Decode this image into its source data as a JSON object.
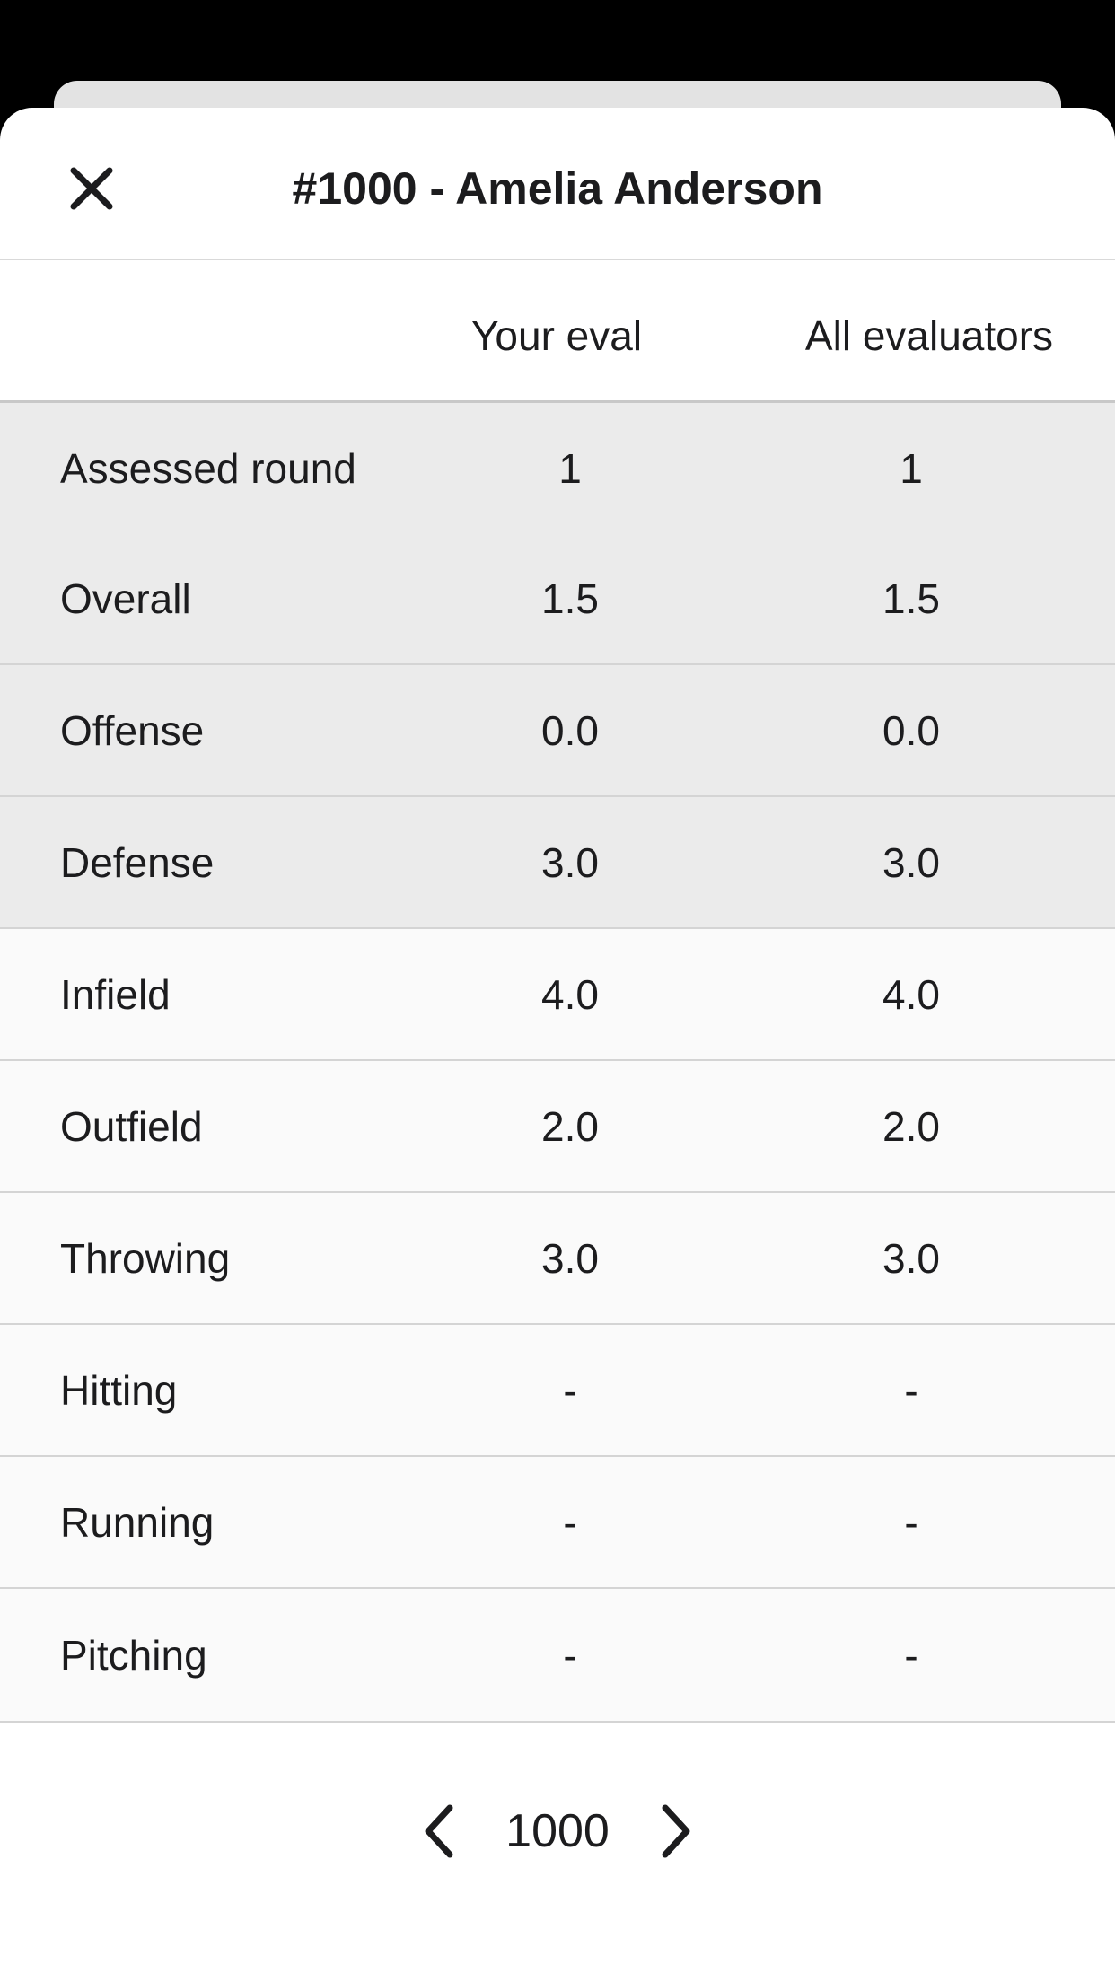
{
  "header": {
    "title": "#1000 - Amelia Anderson",
    "close_icon": "close-icon"
  },
  "columns": {
    "your_eval": "Your eval",
    "all_evaluators": "All evaluators"
  },
  "rows": [
    {
      "label": "Assessed round",
      "your": "1",
      "all": "1"
    },
    {
      "label": "Overall",
      "your": "1.5",
      "all": "1.5"
    },
    {
      "label": "Offense",
      "your": "0.0",
      "all": "0.0"
    },
    {
      "label": "Defense",
      "your": "3.0",
      "all": "3.0"
    },
    {
      "label": "Infield",
      "your": "4.0",
      "all": "4.0"
    },
    {
      "label": "Outfield",
      "your": "2.0",
      "all": "2.0"
    },
    {
      "label": "Throwing",
      "your": "3.0",
      "all": "3.0"
    },
    {
      "label": "Hitting",
      "your": "-",
      "all": "-"
    },
    {
      "label": "Running",
      "your": "-",
      "all": "-"
    },
    {
      "label": "Pitching",
      "your": "-",
      "all": "-"
    }
  ],
  "pager": {
    "current": "1000",
    "prev_icon": "chevron-left-icon",
    "next_icon": "chevron-right-icon"
  },
  "colors": {
    "shaded_row": "#ebebeb",
    "plain_row": "#fafafa",
    "divider": "#d4d4d4",
    "text": "#1c1c1e"
  }
}
